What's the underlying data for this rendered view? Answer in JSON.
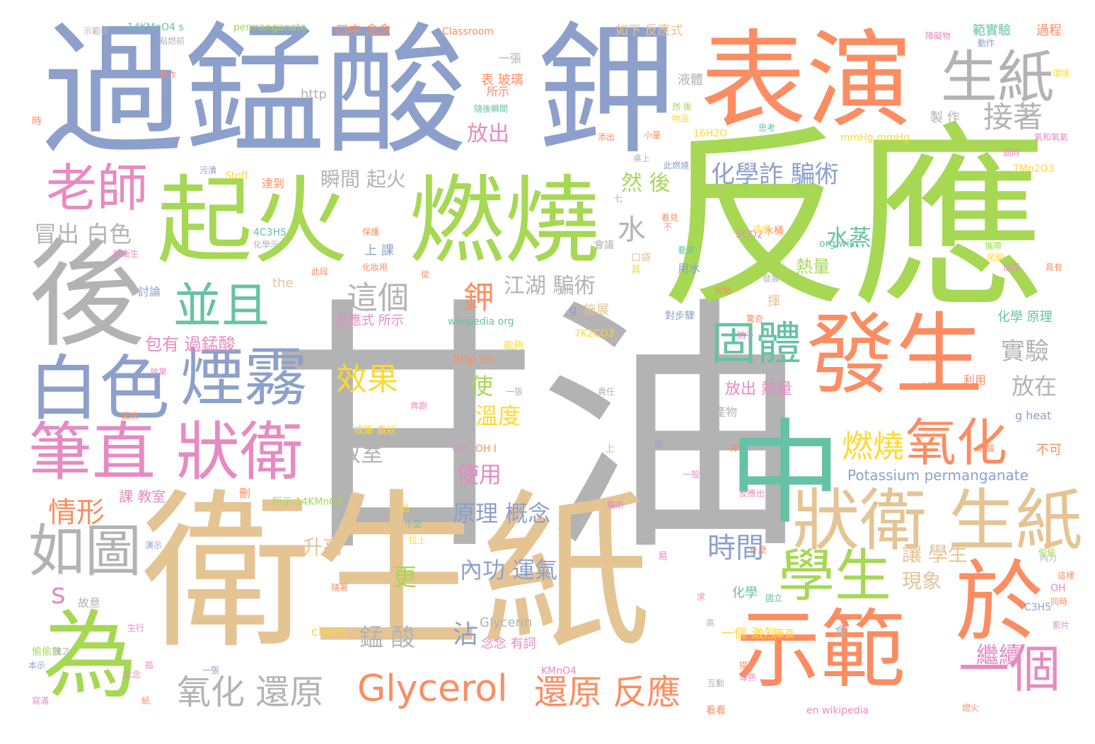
{
  "palette": {
    "gray": "#b3b3b3",
    "blue": "#8da0cb",
    "orange": "#fc8d62",
    "green": "#a6d854",
    "teal": "#66c2a5",
    "pink": "#e78ac3",
    "tan": "#e5c494",
    "yellow": "#ffd92f"
  },
  "words": [
    {
      "text": "甘油",
      "color": "gray"
    },
    {
      "text": "衛生紙",
      "color": "tan"
    },
    {
      "text": "反應",
      "color": "green"
    },
    {
      "text": "過錳酸",
      "color": "blue"
    },
    {
      "text": "鉀",
      "color": "blue"
    },
    {
      "text": "表演",
      "color": "orange"
    },
    {
      "text": "起火",
      "color": "green"
    },
    {
      "text": "燃燒",
      "color": "green"
    },
    {
      "text": "後",
      "color": "gray"
    },
    {
      "text": "中",
      "color": "teal"
    },
    {
      "text": "示範",
      "color": "orange"
    },
    {
      "text": "為",
      "color": "green"
    },
    {
      "text": "於",
      "color": "orange"
    },
    {
      "text": "發生",
      "color": "orange"
    },
    {
      "text": "生紙",
      "color": "gray"
    },
    {
      "text": "狀衛 生紙",
      "color": "tan"
    },
    {
      "text": "學生",
      "color": "green"
    },
    {
      "text": "白色",
      "color": "blue"
    },
    {
      "text": "煙霧",
      "color": "blue"
    },
    {
      "text": "筆直 狀衛",
      "color": "pink"
    },
    {
      "text": "老師",
      "color": "pink"
    },
    {
      "text": "並且",
      "color": "teal"
    },
    {
      "text": "固體",
      "color": "teal"
    },
    {
      "text": "氧化",
      "color": "orange"
    },
    {
      "text": "如圖",
      "color": "gray"
    },
    {
      "text": "Glycerol",
      "color": "orange"
    },
    {
      "text": "一個",
      "color": "pink"
    },
    {
      "text": "還原 反應",
      "color": "orange"
    },
    {
      "text": "氧化 還原",
      "color": "gray"
    },
    {
      "text": "這個",
      "color": "gray"
    },
    {
      "text": "接著",
      "color": "gray"
    },
    {
      "text": "化學詐 騙術",
      "color": "blue"
    },
    {
      "text": "效果",
      "color": "yellow"
    },
    {
      "text": "燃燒",
      "color": "yellow"
    },
    {
      "text": "鉀",
      "color": "orange"
    },
    {
      "text": "時間",
      "color": "blue"
    },
    {
      "text": "實驗",
      "color": "gray"
    },
    {
      "text": "水",
      "color": "gray"
    },
    {
      "text": "江湖 騙術",
      "color": "gray"
    },
    {
      "text": "情形",
      "color": "orange"
    },
    {
      "text": "原理 概念",
      "color": "blue"
    },
    {
      "text": "冒出 白色",
      "color": "gray"
    },
    {
      "text": "瞬間 起火",
      "color": "gray"
    },
    {
      "text": "放出",
      "color": "pink"
    },
    {
      "text": "然 後",
      "color": "green"
    },
    {
      "text": "水蒸",
      "color": "teal"
    },
    {
      "text": "錳 酸",
      "color": "gray"
    },
    {
      "text": "繼續",
      "color": "pink"
    },
    {
      "text": "內功 運氣",
      "color": "blue"
    },
    {
      "text": "放在",
      "color": "gray"
    },
    {
      "text": "溫度",
      "color": "yellow"
    },
    {
      "text": "教室",
      "color": "gray"
    },
    {
      "text": "使用",
      "color": "pink"
    },
    {
      "text": "熱量",
      "color": "green"
    },
    {
      "text": "更",
      "color": "green"
    },
    {
      "text": "升高",
      "color": "tan"
    },
    {
      "text": "讓 學生",
      "color": "tan"
    },
    {
      "text": "現象",
      "color": "tan"
    },
    {
      "text": "包有 過錳酸",
      "color": "pink"
    },
    {
      "text": "使",
      "color": "green"
    },
    {
      "text": "沾",
      "color": "blue"
    },
    {
      "text": "放出 熱量",
      "color": "pink"
    },
    {
      "text": "s",
      "color": "pink"
    },
    {
      "text": "Potassium permanganate",
      "color": "blue"
    },
    {
      "text": "Glycerin",
      "color": "gray"
    },
    {
      "text": "反應式 所示",
      "color": "pink"
    },
    {
      "text": "化學 原理",
      "color": "teal"
    },
    {
      "text": "課 教室",
      "color": "pink"
    },
    {
      "text": "上 課",
      "color": "blue"
    },
    {
      "text": "16H2O",
      "color": "yellow"
    },
    {
      "text": "7Mn2O3",
      "color": "yellow"
    },
    {
      "text": "mmHg mmHg",
      "color": "yellow"
    },
    {
      "text": "如下 反應式",
      "color": "tan"
    },
    {
      "text": "http",
      "color": "gray"
    },
    {
      "text": "液體",
      "color": "gray"
    },
    {
      "text": "製 作",
      "color": "gray"
    },
    {
      "text": "範實驗",
      "color": "teal"
    },
    {
      "text": "過程",
      "color": "orange"
    },
    {
      "text": "口中 念念",
      "color": "orange"
    },
    {
      "text": "Classroom",
      "color": "orange"
    },
    {
      "text": "permanganate",
      "color": "green"
    },
    {
      "text": "14KMnO4 s",
      "color": "teal"
    },
    {
      "text": "表 玻璃",
      "color": "orange"
    },
    {
      "text": "一張",
      "color": "gray"
    },
    {
      "text": "所示",
      "color": "orange"
    },
    {
      "text": "化學",
      "color": "teal"
    },
    {
      "text": "一個 激烈",
      "color": "yellow"
    },
    {
      "text": "念念 有詞",
      "color": "pink"
    },
    {
      "text": "chem",
      "color": "yellow"
    },
    {
      "text": "KMnO4",
      "color": "pink"
    },
    {
      "text": "en wikipedia",
      "color": "pink"
    },
    {
      "text": "g heat",
      "color": "blue"
    },
    {
      "text": "OH",
      "color": "pink"
    },
    {
      "text": "不可",
      "color": "orange"
    },
    {
      "text": "利用",
      "color": "orange"
    },
    {
      "text": "立即",
      "color": "orange"
    },
    {
      "text": "C3H5",
      "color": "blue"
    },
    {
      "text": "wikipedia org",
      "color": "teal"
    },
    {
      "text": "7K2CO3",
      "color": "yellow"
    },
    {
      "text": "http en",
      "color": "orange"
    },
    {
      "text": "能夠",
      "color": "yellow"
    },
    {
      "text": "施展",
      "color": "tan"
    },
    {
      "text": "g",
      "color": "blue"
    },
    {
      "text": "the",
      "color": "tan"
    },
    {
      "text": "Stoff",
      "color": "yellow"
    },
    {
      "text": "4C3H5",
      "color": "teal"
    },
    {
      "text": "5CO2",
      "color": "pink"
    },
    {
      "text": "org wiki",
      "color": "teal"
    },
    {
      "text": "用水",
      "color": "blue"
    },
    {
      "text": "討論",
      "color": "blue"
    },
    {
      "text": "所示 14KMnO4",
      "color": "green"
    },
    {
      "text": "成筆 直狀",
      "color": "yellow"
    },
    {
      "text": "產物",
      "color": "gray"
    },
    {
      "text": "故意",
      "color": "gray"
    },
    {
      "text": "時",
      "color": "orange"
    },
    {
      "text": "達到",
      "color": "orange"
    },
    {
      "text": "污漬",
      "color": "blue"
    },
    {
      "text": "化妝用",
      "color": "orange"
    },
    {
      "text": "此段",
      "color": "orange"
    },
    {
      "text": "狀衛生",
      "color": "pink"
    },
    {
      "text": "上",
      "color": "green"
    },
    {
      "text": "出",
      "color": "yellow"
    },
    {
      "text": "刪",
      "color": "orange"
    },
    {
      "text": "什麼",
      "color": "orange"
    },
    {
      "text": "國立",
      "color": "teal"
    },
    {
      "text": "會",
      "color": "gray"
    },
    {
      "text": "看看",
      "color": "orange"
    },
    {
      "text": "熄火",
      "color": "orange"
    },
    {
      "text": "互動",
      "color": "gray"
    },
    {
      "text": "影片",
      "color": "pink"
    },
    {
      "text": "內力",
      "color": "gray"
    },
    {
      "text": "寫滿",
      "color": "pink"
    },
    {
      "text": "本示",
      "color": "blue"
    },
    {
      "text": "偷偷放",
      "color": "green"
    },
    {
      "text": "責任",
      "color": "gray"
    },
    {
      "text": "OH I",
      "color": "orange"
    },
    {
      "text": "常作",
      "color": "orange"
    },
    {
      "text": "不",
      "color": "pink"
    },
    {
      "text": "七",
      "color": "gray"
    },
    {
      "text": "從",
      "color": "orange"
    },
    {
      "text": "揮",
      "color": "tan"
    },
    {
      "text": "具有",
      "color": "orange"
    },
    {
      "text": "故而",
      "color": "pink"
    },
    {
      "text": "環境",
      "color": "yellow"
    },
    {
      "text": "氧和氧氣",
      "color": "pink"
    },
    {
      "text": "動作",
      "color": "blue"
    },
    {
      "text": "障礙物",
      "color": "pink"
    },
    {
      "text": "示範者",
      "color": "gray"
    },
    {
      "text": "點燃前",
      "color": "gray"
    },
    {
      "text": "桌上",
      "color": "gray"
    },
    {
      "text": "此燃燒",
      "color": "blue"
    },
    {
      "text": "小量",
      "color": "orange"
    },
    {
      "text": "水桶",
      "color": "orange"
    },
    {
      "text": "隨後瞬間",
      "color": "teal"
    },
    {
      "text": "一張",
      "color": "gray"
    },
    {
      "text": "小型",
      "color": "teal"
    },
    {
      "text": "拉上",
      "color": "yellow"
    },
    {
      "text": "演示",
      "color": "blue"
    },
    {
      "text": "有點",
      "color": "orange"
    },
    {
      "text": "騙術",
      "color": "pink"
    },
    {
      "text": "可於",
      "color": "pink"
    },
    {
      "text": "反應出",
      "color": "pink"
    },
    {
      "text": "易",
      "color": "pink"
    },
    {
      "text": "狀",
      "color": "blue"
    },
    {
      "text": "生行",
      "color": "pink"
    },
    {
      "text": "念念",
      "color": "pink"
    },
    {
      "text": "孤",
      "color": "pink"
    },
    {
      "text": "紙",
      "color": "orange"
    },
    {
      "text": "起來",
      "color": "orange"
    },
    {
      "text": "效果",
      "color": "pink"
    },
    {
      "text": "隨著",
      "color": "orange"
    },
    {
      "text": "這樣",
      "color": "orange"
    },
    {
      "text": "同時",
      "color": "orange"
    },
    {
      "text": "求",
      "color": "pink"
    },
    {
      "text": "高",
      "color": "gray"
    },
    {
      "text": "會議",
      "color": "gray"
    },
    {
      "text": "然 後",
      "color": "green"
    },
    {
      "text": "物品",
      "color": "yellow"
    },
    {
      "text": "添出",
      "color": "orange"
    },
    {
      "text": "思考",
      "color": "teal"
    },
    {
      "text": "描",
      "color": "orange"
    },
    {
      "text": "其",
      "color": "yellow"
    },
    {
      "text": "口袋",
      "color": "tan"
    },
    {
      "text": "對步驟",
      "color": "blue"
    },
    {
      "text": "驚奇",
      "color": "orange"
    },
    {
      "text": "拍手",
      "color": "pink"
    },
    {
      "text": "發展",
      "color": "gray"
    },
    {
      "text": "看見",
      "color": "orange"
    },
    {
      "text": "保護",
      "color": "orange"
    },
    {
      "text": "化學示",
      "color": "gray"
    },
    {
      "text": "造成",
      "color": "yellow"
    },
    {
      "text": "摔",
      "color": "orange"
    },
    {
      "text": "硫酸",
      "color": "orange"
    },
    {
      "text": "一張",
      "color": "blue"
    },
    {
      "text": "一般",
      "color": "pink"
    },
    {
      "text": "奔跑",
      "color": "pink"
    },
    {
      "text": "筆直",
      "color": "yellow"
    },
    {
      "text": "陳之",
      "color": "gray"
    },
    {
      "text": "偷偷",
      "color": "green"
    },
    {
      "text": "屆時",
      "color": "pink"
    },
    {
      "text": "尾部",
      "color": "yellow"
    },
    {
      "text": "攜帶",
      "color": "green"
    },
    {
      "text": "要求",
      "color": "teal"
    },
    {
      "text": "導熱",
      "color": "pink"
    },
    {
      "text": "寫",
      "color": "teal"
    }
  ]
}
